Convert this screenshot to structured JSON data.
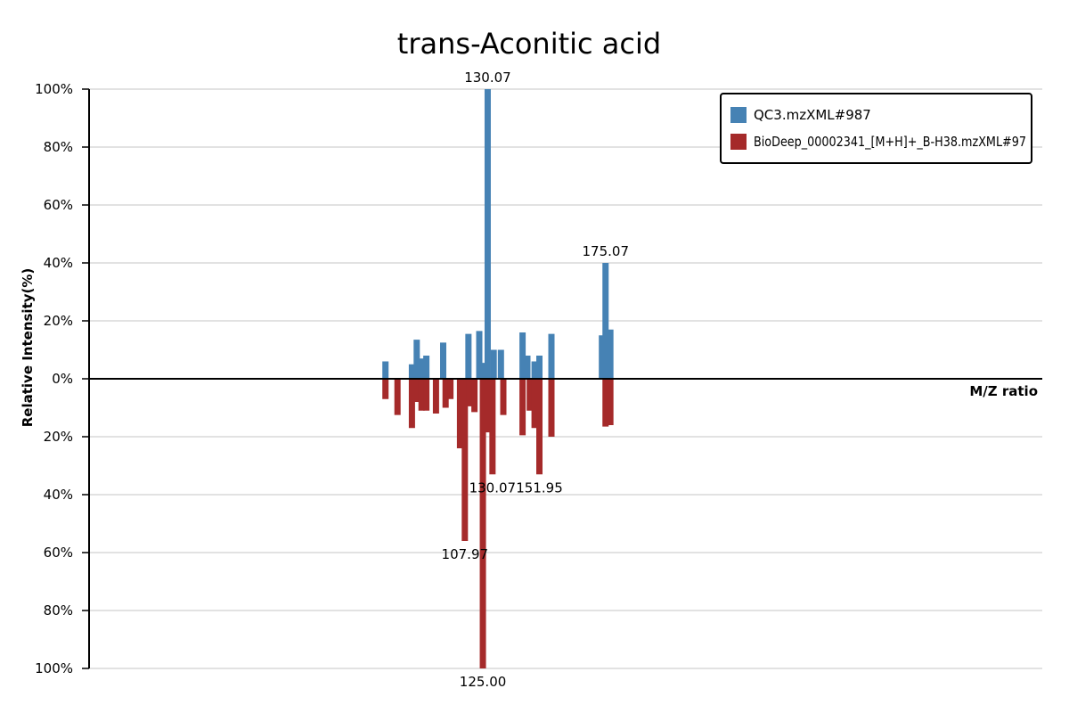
{
  "chart_data": {
    "type": "bar",
    "title": "trans-Aconitic acid",
    "xlabel": "M/Z ratio",
    "ylabel": "Relative Intensity(%)",
    "ylim": [
      -100,
      100
    ],
    "y_ticks": [
      {
        "v": 100,
        "t": "100%"
      },
      {
        "v": 80,
        "t": "80%"
      },
      {
        "v": 60,
        "t": "60%"
      },
      {
        "v": 40,
        "t": "40%"
      },
      {
        "v": 20,
        "t": "20%"
      },
      {
        "v": 0,
        "t": "0%"
      },
      {
        "v": -20,
        "t": "20%"
      },
      {
        "v": -40,
        "t": "40%"
      },
      {
        "v": -60,
        "t": "60%"
      },
      {
        "v": -80,
        "t": "80%"
      },
      {
        "v": -100,
        "t": "100%"
      }
    ],
    "grid": true,
    "legend_position": "top-right",
    "series": [
      {
        "name": "QC3.mzXML#987",
        "color": "#4682b4",
        "direction": "up",
        "bars": [
          {
            "pos": 0.01,
            "value": 6
          },
          {
            "pos": 0.12,
            "value": 5
          },
          {
            "pos": 0.14,
            "value": 13.5
          },
          {
            "pos": 0.16,
            "value": 7
          },
          {
            "pos": 0.18,
            "value": 8
          },
          {
            "pos": 0.25,
            "value": 12.5
          },
          {
            "pos": 0.355,
            "value": 15.5
          },
          {
            "pos": 0.4,
            "value": 16.5
          },
          {
            "pos": 0.42,
            "value": 5.5
          },
          {
            "pos": 0.435,
            "value": 100,
            "label": "130.07"
          },
          {
            "pos": 0.46,
            "value": 10
          },
          {
            "pos": 0.49,
            "value": 10
          },
          {
            "pos": 0.58,
            "value": 16
          },
          {
            "pos": 0.6,
            "value": 8
          },
          {
            "pos": 0.63,
            "value": 6
          },
          {
            "pos": 0.65,
            "value": 8
          },
          {
            "pos": 0.7,
            "value": 15.5
          },
          {
            "pos": 0.91,
            "value": 15
          },
          {
            "pos": 0.925,
            "value": 40,
            "label": "175.07"
          },
          {
            "pos": 0.945,
            "value": 17
          }
        ]
      },
      {
        "name": "BioDeep_00002341_[M+H]+_B-H38.mzXML#97",
        "color": "#a52a2a",
        "direction": "down",
        "bars": [
          {
            "pos": 0.01,
            "value": 7
          },
          {
            "pos": 0.06,
            "value": 12.5
          },
          {
            "pos": 0.12,
            "value": 17
          },
          {
            "pos": 0.14,
            "value": 8
          },
          {
            "pos": 0.16,
            "value": 11
          },
          {
            "pos": 0.18,
            "value": 11
          },
          {
            "pos": 0.22,
            "value": 12
          },
          {
            "pos": 0.26,
            "value": 10
          },
          {
            "pos": 0.28,
            "value": 7
          },
          {
            "pos": 0.32,
            "value": 24
          },
          {
            "pos": 0.34,
            "value": 56,
            "label": "107.97"
          },
          {
            "pos": 0.36,
            "value": 9.5
          },
          {
            "pos": 0.38,
            "value": 11.5
          },
          {
            "pos": 0.415,
            "value": 100,
            "label": "125.00"
          },
          {
            "pos": 0.435,
            "value": 18.5
          },
          {
            "pos": 0.455,
            "value": 33,
            "label": "130.07"
          },
          {
            "pos": 0.5,
            "value": 12.5
          },
          {
            "pos": 0.58,
            "value": 19.5
          },
          {
            "pos": 0.61,
            "value": 11
          },
          {
            "pos": 0.63,
            "value": 17
          },
          {
            "pos": 0.65,
            "value": 33,
            "label": "151.95"
          },
          {
            "pos": 0.7,
            "value": 20
          },
          {
            "pos": 0.925,
            "value": 16.5
          },
          {
            "pos": 0.945,
            "value": 16
          }
        ]
      }
    ]
  }
}
